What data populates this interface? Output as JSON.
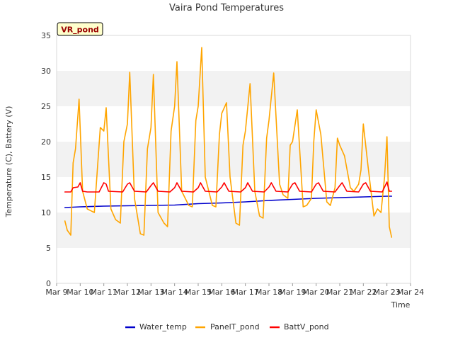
{
  "chart_data": {
    "type": "line",
    "title": "Vaira Pond Temperatures",
    "site_label": "VR_pond",
    "xlabel": "Time",
    "ylabel": "Temperature (C), Battery (V)",
    "xlim": [
      9,
      24
    ],
    "ylim": [
      0,
      35
    ],
    "x_ticks": [
      {
        "value": 9,
        "label": "Mar 9"
      },
      {
        "value": 10,
        "label": "Mar 10"
      },
      {
        "value": 11,
        "label": "Mar 11"
      },
      {
        "value": 12,
        "label": "Mar 12"
      },
      {
        "value": 13,
        "label": "Mar 13"
      },
      {
        "value": 14,
        "label": "Mar 14"
      },
      {
        "value": 15,
        "label": "Mar 15"
      },
      {
        "value": 16,
        "label": "Mar 16"
      },
      {
        "value": 17,
        "label": "Mar 17"
      },
      {
        "value": 18,
        "label": "Mar 18"
      },
      {
        "value": 19,
        "label": "Mar 19"
      },
      {
        "value": 20,
        "label": "Mar 20"
      },
      {
        "value": 21,
        "label": "Mar 21"
      },
      {
        "value": 22,
        "label": "Mar 22"
      },
      {
        "value": 23,
        "label": "Mar 23"
      },
      {
        "value": 24,
        "label": "Mar 24"
      }
    ],
    "y_ticks": [
      0,
      5,
      10,
      15,
      20,
      25,
      30,
      35
    ],
    "grid": "horizontal bands",
    "legend_position": "bottom",
    "series": [
      {
        "name": "Water_temp",
        "color": "#0000cc",
        "x": [
          9.35,
          10.0,
          11.0,
          12.0,
          13.0,
          14.0,
          15.0,
          16.0,
          17.0,
          18.0,
          19.0,
          20.0,
          21.0,
          22.0,
          23.0,
          23.2
        ],
        "y": [
          10.7,
          10.8,
          10.9,
          10.95,
          11.0,
          11.05,
          11.25,
          11.35,
          11.5,
          11.7,
          11.85,
          12.0,
          12.1,
          12.2,
          12.3,
          12.3
        ]
      },
      {
        "name": "PanelT_pond",
        "color": "#ffa500",
        "x": [
          9.35,
          9.45,
          9.6,
          9.7,
          9.8,
          9.95,
          10.1,
          10.3,
          10.6,
          10.85,
          11.0,
          11.1,
          11.3,
          11.5,
          11.7,
          11.85,
          12.0,
          12.1,
          12.3,
          12.55,
          12.7,
          12.85,
          13.0,
          13.1,
          13.3,
          13.55,
          13.7,
          13.85,
          14.0,
          14.1,
          14.3,
          14.6,
          14.75,
          14.9,
          15.0,
          15.15,
          15.3,
          15.6,
          15.75,
          15.9,
          16.0,
          16.2,
          16.35,
          16.6,
          16.75,
          16.9,
          17.0,
          17.2,
          17.4,
          17.6,
          17.75,
          17.9,
          18.0,
          18.2,
          18.45,
          18.6,
          18.8,
          18.9,
          19.0,
          19.2,
          19.45,
          19.6,
          19.8,
          19.9,
          20.0,
          20.2,
          20.45,
          20.6,
          20.8,
          20.9,
          21.0,
          21.2,
          21.45,
          21.6,
          21.8,
          21.9,
          22.0,
          22.2,
          22.45,
          22.6,
          22.75,
          22.9,
          23.0,
          23.1,
          23.2
        ],
        "y": [
          8.8,
          7.5,
          6.8,
          17.0,
          19.0,
          26.0,
          13.0,
          10.5,
          10.0,
          22.0,
          21.5,
          24.8,
          10.5,
          9.0,
          8.5,
          20.0,
          22.5,
          29.8,
          12.0,
          7.0,
          6.8,
          19.0,
          22.0,
          29.5,
          10.0,
          8.5,
          8.0,
          21.5,
          25.0,
          31.3,
          13.0,
          11.0,
          10.8,
          23.0,
          25.0,
          33.3,
          15.0,
          11.0,
          10.8,
          21.0,
          24.0,
          25.5,
          15.0,
          8.5,
          8.2,
          19.5,
          21.5,
          28.2,
          13.0,
          9.5,
          9.2,
          20.5,
          23.0,
          29.7,
          14.0,
          12.5,
          12.0,
          19.5,
          20.0,
          24.5,
          10.8,
          11.0,
          12.0,
          20.0,
          24.5,
          21.0,
          11.5,
          11.0,
          13.5,
          20.5,
          19.5,
          18.0,
          13.5,
          13.0,
          14.0,
          16.0,
          22.5,
          16.5,
          9.5,
          10.5,
          10.0,
          15.0,
          20.7,
          8.0,
          6.5
        ]
      },
      {
        "name": "BattV_pond",
        "color": "#ff0000",
        "x": [
          9.35,
          9.6,
          9.7,
          9.9,
          10.0,
          10.1,
          10.3,
          10.8,
          11.0,
          11.1,
          11.2,
          11.8,
          12.0,
          12.1,
          12.3,
          12.8,
          13.0,
          13.1,
          13.3,
          13.8,
          14.0,
          14.1,
          14.3,
          14.8,
          15.0,
          15.1,
          15.3,
          15.8,
          16.0,
          16.1,
          16.3,
          16.8,
          17.0,
          17.1,
          17.3,
          17.8,
          18.0,
          18.1,
          18.3,
          18.8,
          19.0,
          19.1,
          19.3,
          19.8,
          20.0,
          20.1,
          20.3,
          20.8,
          21.0,
          21.1,
          21.3,
          21.8,
          22.0,
          22.1,
          22.3,
          22.8,
          23.0,
          23.1,
          23.2
        ],
        "y": [
          12.9,
          12.9,
          13.5,
          13.6,
          14.2,
          13.0,
          12.9,
          12.9,
          14.2,
          14.0,
          13.0,
          12.9,
          14.0,
          14.2,
          13.0,
          12.9,
          13.8,
          14.2,
          13.0,
          12.9,
          13.5,
          14.2,
          13.0,
          12.9,
          13.5,
          14.2,
          13.0,
          12.9,
          13.6,
          14.2,
          13.0,
          12.9,
          13.5,
          14.2,
          13.0,
          12.9,
          13.6,
          14.2,
          13.0,
          12.9,
          14.0,
          14.2,
          13.0,
          12.9,
          14.0,
          14.2,
          13.0,
          12.9,
          13.8,
          14.2,
          13.0,
          12.9,
          14.0,
          14.2,
          13.0,
          12.9,
          14.3,
          13.0,
          13.0
        ]
      }
    ]
  }
}
